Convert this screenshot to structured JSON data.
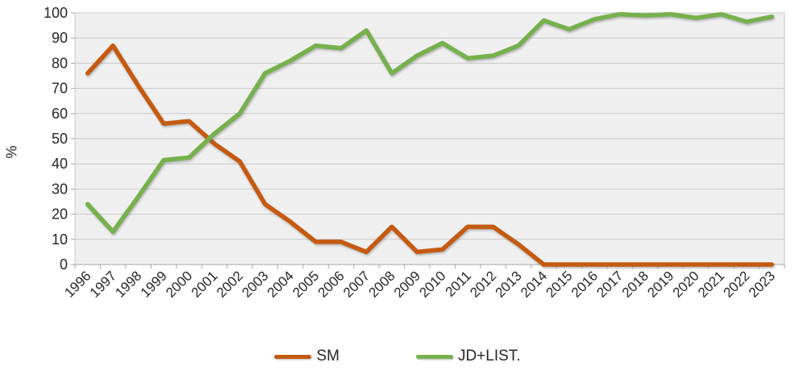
{
  "chart_data": {
    "type": "line",
    "title": "",
    "xlabel": "",
    "ylabel": "%",
    "ylim": [
      0,
      100
    ],
    "y_tick_labels": [
      "0",
      "10",
      "20",
      "30",
      "40",
      "50",
      "60",
      "70",
      "80",
      "90",
      "100"
    ],
    "categories": [
      "1996",
      "1997",
      "1998",
      "1999",
      "2000",
      "2001",
      "2002",
      "2003",
      "2004",
      "2005",
      "2006",
      "2007",
      "2008",
      "2009",
      "2010",
      "2011",
      "2012",
      "2013",
      "2014",
      "2015",
      "2016",
      "2017",
      "2018",
      "2019",
      "2020",
      "2021",
      "2022",
      "2023"
    ],
    "series": [
      {
        "name": "SM",
        "color": "#C55A11",
        "values": [
          76,
          87,
          71,
          56,
          57,
          48,
          41,
          24,
          17,
          9,
          9,
          5,
          15,
          5,
          6,
          15,
          15,
          8,
          0,
          0,
          0,
          0,
          0,
          0,
          0,
          0,
          0,
          0
        ]
      },
      {
        "name": "JD+LIST.",
        "color": "#76B14E",
        "values": [
          24,
          13,
          27,
          41.5,
          42.5,
          52,
          60,
          76,
          81,
          87,
          86,
          93,
          76,
          83,
          88,
          82,
          83,
          87,
          97,
          93.5,
          97.5,
          99.5,
          99,
          99.5,
          98,
          99.5,
          96.5,
          98.5
        ]
      }
    ],
    "legend_position": "bottom",
    "grid": true
  },
  "colors": {
    "plot_bg": "#F0F0F0",
    "grid": "#C9C9C9",
    "axis": "#A6A6A6",
    "tick_text": "#262626"
  }
}
